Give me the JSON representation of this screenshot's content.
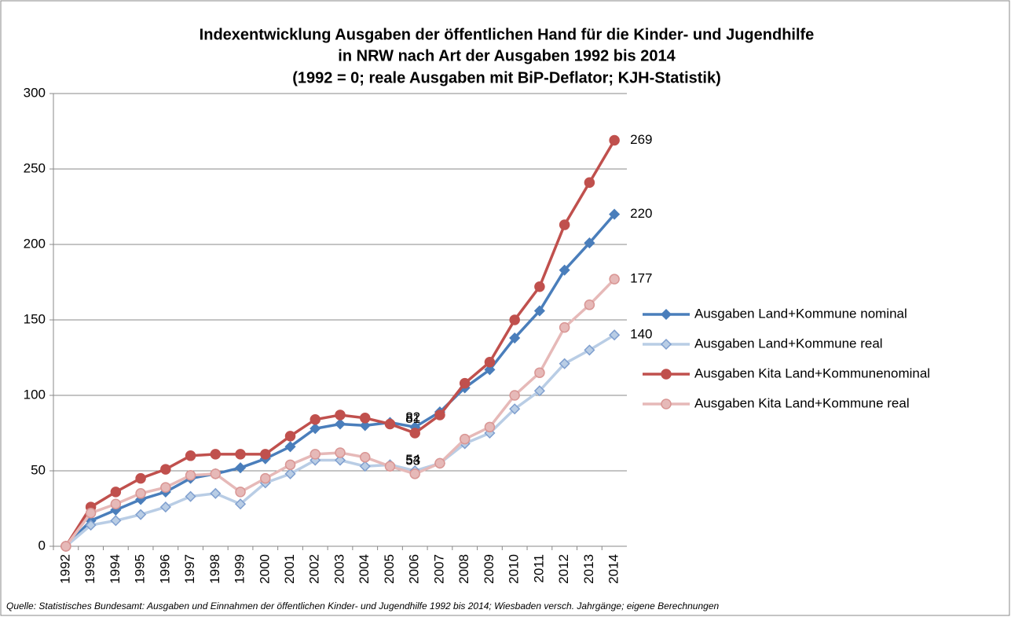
{
  "chart_data": {
    "type": "line",
    "title": [
      "Indexentwicklung Ausgaben der öffentlichen Hand für die Kinder- und Jugendhilfe",
      "in NRW nach Art der Ausgaben 1992 bis 2014",
      "(1992 = 0; reale Ausgaben mit BiP-Deflator; KJH-Statistik)"
    ],
    "categories": [
      "1992",
      "1993",
      "1994",
      "1995",
      "1996",
      "1997",
      "1998",
      "1999",
      "2000",
      "2001",
      "2002",
      "2003",
      "2004",
      "2005",
      "2006",
      "2007",
      "2008",
      "2009",
      "2010",
      "2011",
      "2012",
      "2013",
      "2014"
    ],
    "series": [
      {
        "name": "Ausgaben Land+Kommune nominal",
        "color": "#4a7ebb",
        "marker": "diamond",
        "values": [
          0,
          17,
          24,
          31,
          36,
          45,
          48,
          52,
          58,
          66,
          78,
          81,
          80,
          82,
          79,
          89,
          105,
          117,
          138,
          156,
          183,
          201,
          220
        ],
        "value_labels": [
          null,
          null,
          null,
          null,
          null,
          null,
          null,
          null,
          null,
          null,
          null,
          null,
          null,
          "82",
          null,
          null,
          null,
          null,
          null,
          null,
          null,
          null,
          "220"
        ]
      },
      {
        "name": "Ausgaben Land+Kommune real",
        "color": "#b9cde5",
        "marker": "diamond",
        "values": [
          0,
          14,
          17,
          21,
          26,
          33,
          35,
          28,
          42,
          48,
          57,
          57,
          53,
          54,
          50,
          55,
          68,
          75,
          91,
          103,
          121,
          130,
          140
        ],
        "value_labels": [
          null,
          null,
          null,
          null,
          null,
          null,
          null,
          null,
          null,
          null,
          null,
          null,
          null,
          "54",
          null,
          null,
          null,
          null,
          null,
          null,
          null,
          null,
          "140"
        ]
      },
      {
        "name": "Ausgaben Kita Land+Kommunenominal",
        "color": "#c0504d",
        "marker": "circle",
        "values": [
          0,
          26,
          36,
          45,
          51,
          60,
          61,
          61,
          61,
          73,
          84,
          87,
          85,
          81,
          75,
          87,
          108,
          122,
          150,
          172,
          213,
          241,
          269
        ],
        "value_labels": [
          null,
          null,
          null,
          null,
          null,
          null,
          null,
          null,
          null,
          null,
          null,
          null,
          null,
          "81",
          null,
          null,
          null,
          null,
          null,
          null,
          null,
          null,
          "269"
        ]
      },
      {
        "name": "Ausgaben Kita Land+Kommune real",
        "color": "#e6b9b8",
        "marker": "circle",
        "values": [
          0,
          22,
          28,
          35,
          39,
          47,
          48,
          36,
          45,
          54,
          61,
          62,
          59,
          53,
          48,
          55,
          71,
          79,
          100,
          115,
          145,
          160,
          177
        ],
        "value_labels": [
          null,
          null,
          null,
          null,
          null,
          null,
          null,
          null,
          null,
          null,
          null,
          null,
          null,
          "53",
          null,
          null,
          null,
          null,
          null,
          null,
          null,
          null,
          "177"
        ]
      }
    ],
    "ylim": [
      0,
      300
    ],
    "yticks": [
      0,
      50,
      100,
      150,
      200,
      250,
      300
    ],
    "grid": true,
    "legend": "right",
    "source": "Quelle: Statistisches Bundesamt: Ausgaben und Einnahmen der öffentlichen Kinder- und Jugendhilfe 1992 bis 2014; Wiesbaden versch. Jahrgänge; eigene Berechnungen"
  }
}
